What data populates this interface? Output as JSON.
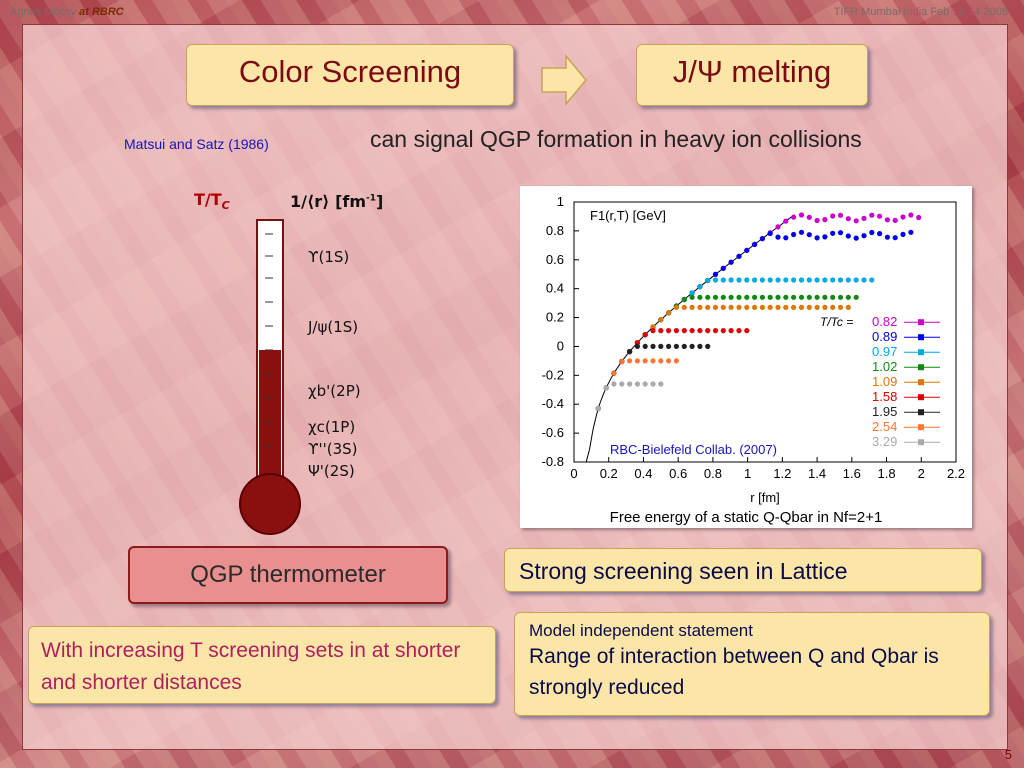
{
  "header": {
    "author": "Ágnes Mócsy",
    "author_affil_prefix": "at",
    "author_affil": "RBRC",
    "event": "TIFR Mumbai India Feb 12-14 2008"
  },
  "slide_number": "5",
  "title_left": "Color Screening",
  "title_right": "J/Ψ melting",
  "subtitle": "can signal QGP formation in heavy ion collisions",
  "citation": "Matsui and Satz (1986)",
  "thermometer": {
    "axis_t": "T/T",
    "axis_t_sub": "C",
    "axis_r": "1/⟨r⟩ [fm",
    "axis_r_sup": "-1",
    "axis_r_end": "]",
    "states": [
      "ϒ(1S)",
      "J/ψ(1S)",
      "χb'(2P)",
      "χc(1P)",
      "ϒ''(3S)",
      "Ψ'(2S)"
    ]
  },
  "qgp_label": "QGP thermometer",
  "lattice_box": "Strong screening seen in Lattice",
  "left_box": "With increasing T screening sets in at shorter and shorter distances",
  "right_box": {
    "line1": "Model independent statement",
    "line2": "Range of interaction between Q and Qbar is strongly reduced"
  },
  "plot": {
    "ylabel": "F1(r,T) [GeV]",
    "xlabel": "r [fm]",
    "legend_title": "T/Tc =",
    "collab": "RBC-Bielefeld Collab. (2007)",
    "caption": "Free energy of a static Q-Qbar in Nf=2+1",
    "x_ticks": [
      "0",
      "0.2",
      "0.4",
      "0.6",
      "0.8",
      "1",
      "1.2",
      "1.4",
      "1.6",
      "1.8",
      "2",
      "2.2"
    ],
    "y_ticks": [
      "1",
      "0.8",
      "0.6",
      "0.4",
      "0.2",
      "0",
      "-0.2",
      "-0.4",
      "-0.6",
      "-0.8"
    ],
    "series": [
      {
        "label": "0.82",
        "color": "#cc00cc",
        "plateau": 0.89
      },
      {
        "label": "0.89",
        "color": "#0000ee",
        "plateau": 0.77
      },
      {
        "label": "0.97",
        "color": "#00aadd",
        "plateau": 0.46
      },
      {
        "label": "1.02",
        "color": "#118811",
        "plateau": 0.34
      },
      {
        "label": "1.09",
        "color": "#dd7700",
        "plateau": 0.27
      },
      {
        "label": "1.58",
        "color": "#dd0000",
        "plateau": 0.11
      },
      {
        "label": "1.95",
        "color": "#222222",
        "plateau": 0.0
      },
      {
        "label": "2.54",
        "color": "#ff7733",
        "plateau": -0.1
      },
      {
        "label": "3.29",
        "color": "#aaaaaa",
        "plateau": -0.26
      }
    ]
  }
}
